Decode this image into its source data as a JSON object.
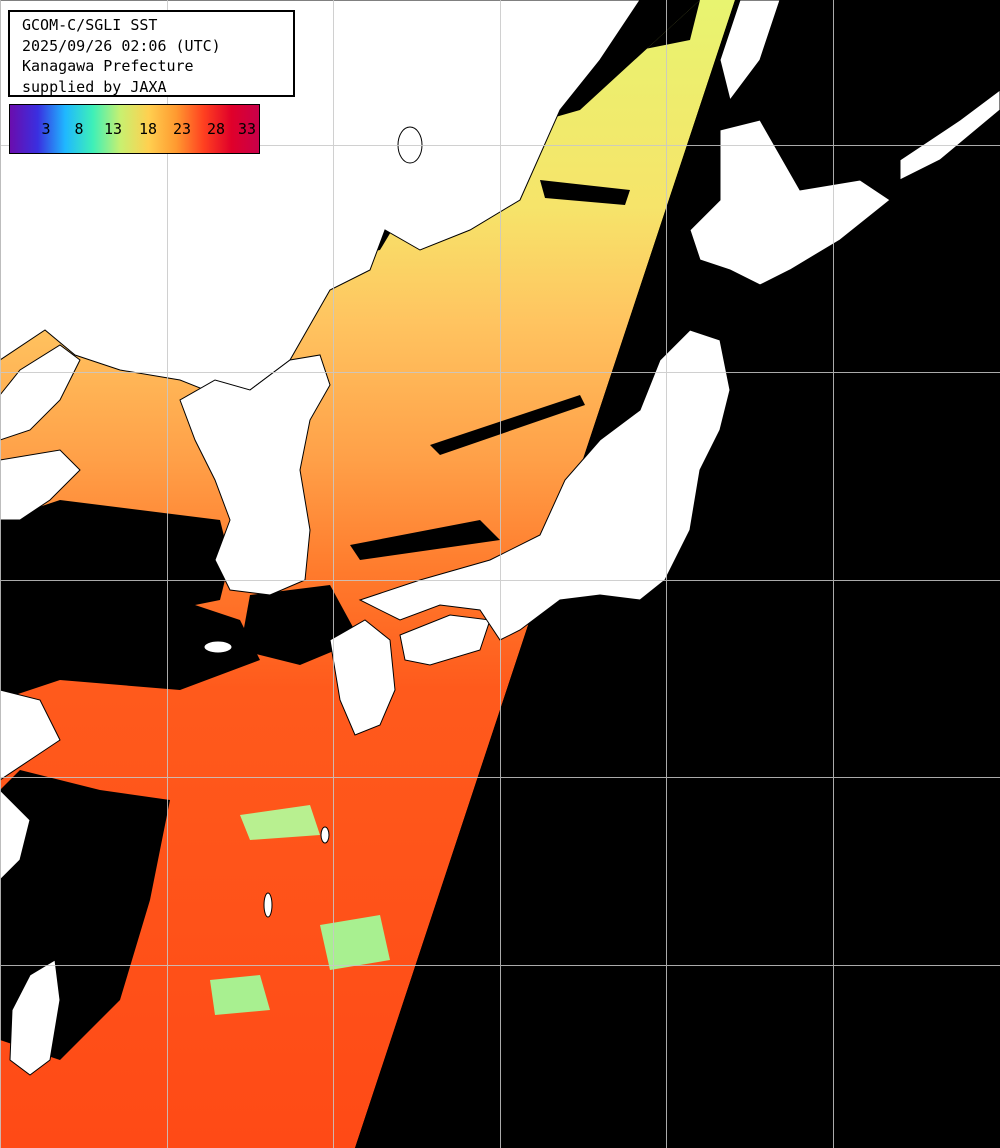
{
  "title_lines": [
    "GCOM-C/SGLI SST",
    "2025/09/26 02:06 (UTC)",
    "Kanagawa Prefecture",
    "supplied by JAXA"
  ],
  "legend": {
    "labels": [
      "3",
      "8",
      "13",
      "18",
      "23",
      "28",
      "33"
    ],
    "colors": [
      "#6a0dad",
      "#3a2fe0",
      "#1fb8ff",
      "#3ef0b8",
      "#c8f070",
      "#ffd050",
      "#ff9a30",
      "#ff4020",
      "#e0002a",
      "#c8004a"
    ]
  },
  "colors": {
    "land": "#ffffff",
    "no_data": "#000000",
    "grid": "#c8c8c8",
    "sst_cool": "#d8f070",
    "sst_mid": "#ffa848",
    "sst_warm": "#ff4a18",
    "cloud_edge": "#6ee8a0"
  }
}
